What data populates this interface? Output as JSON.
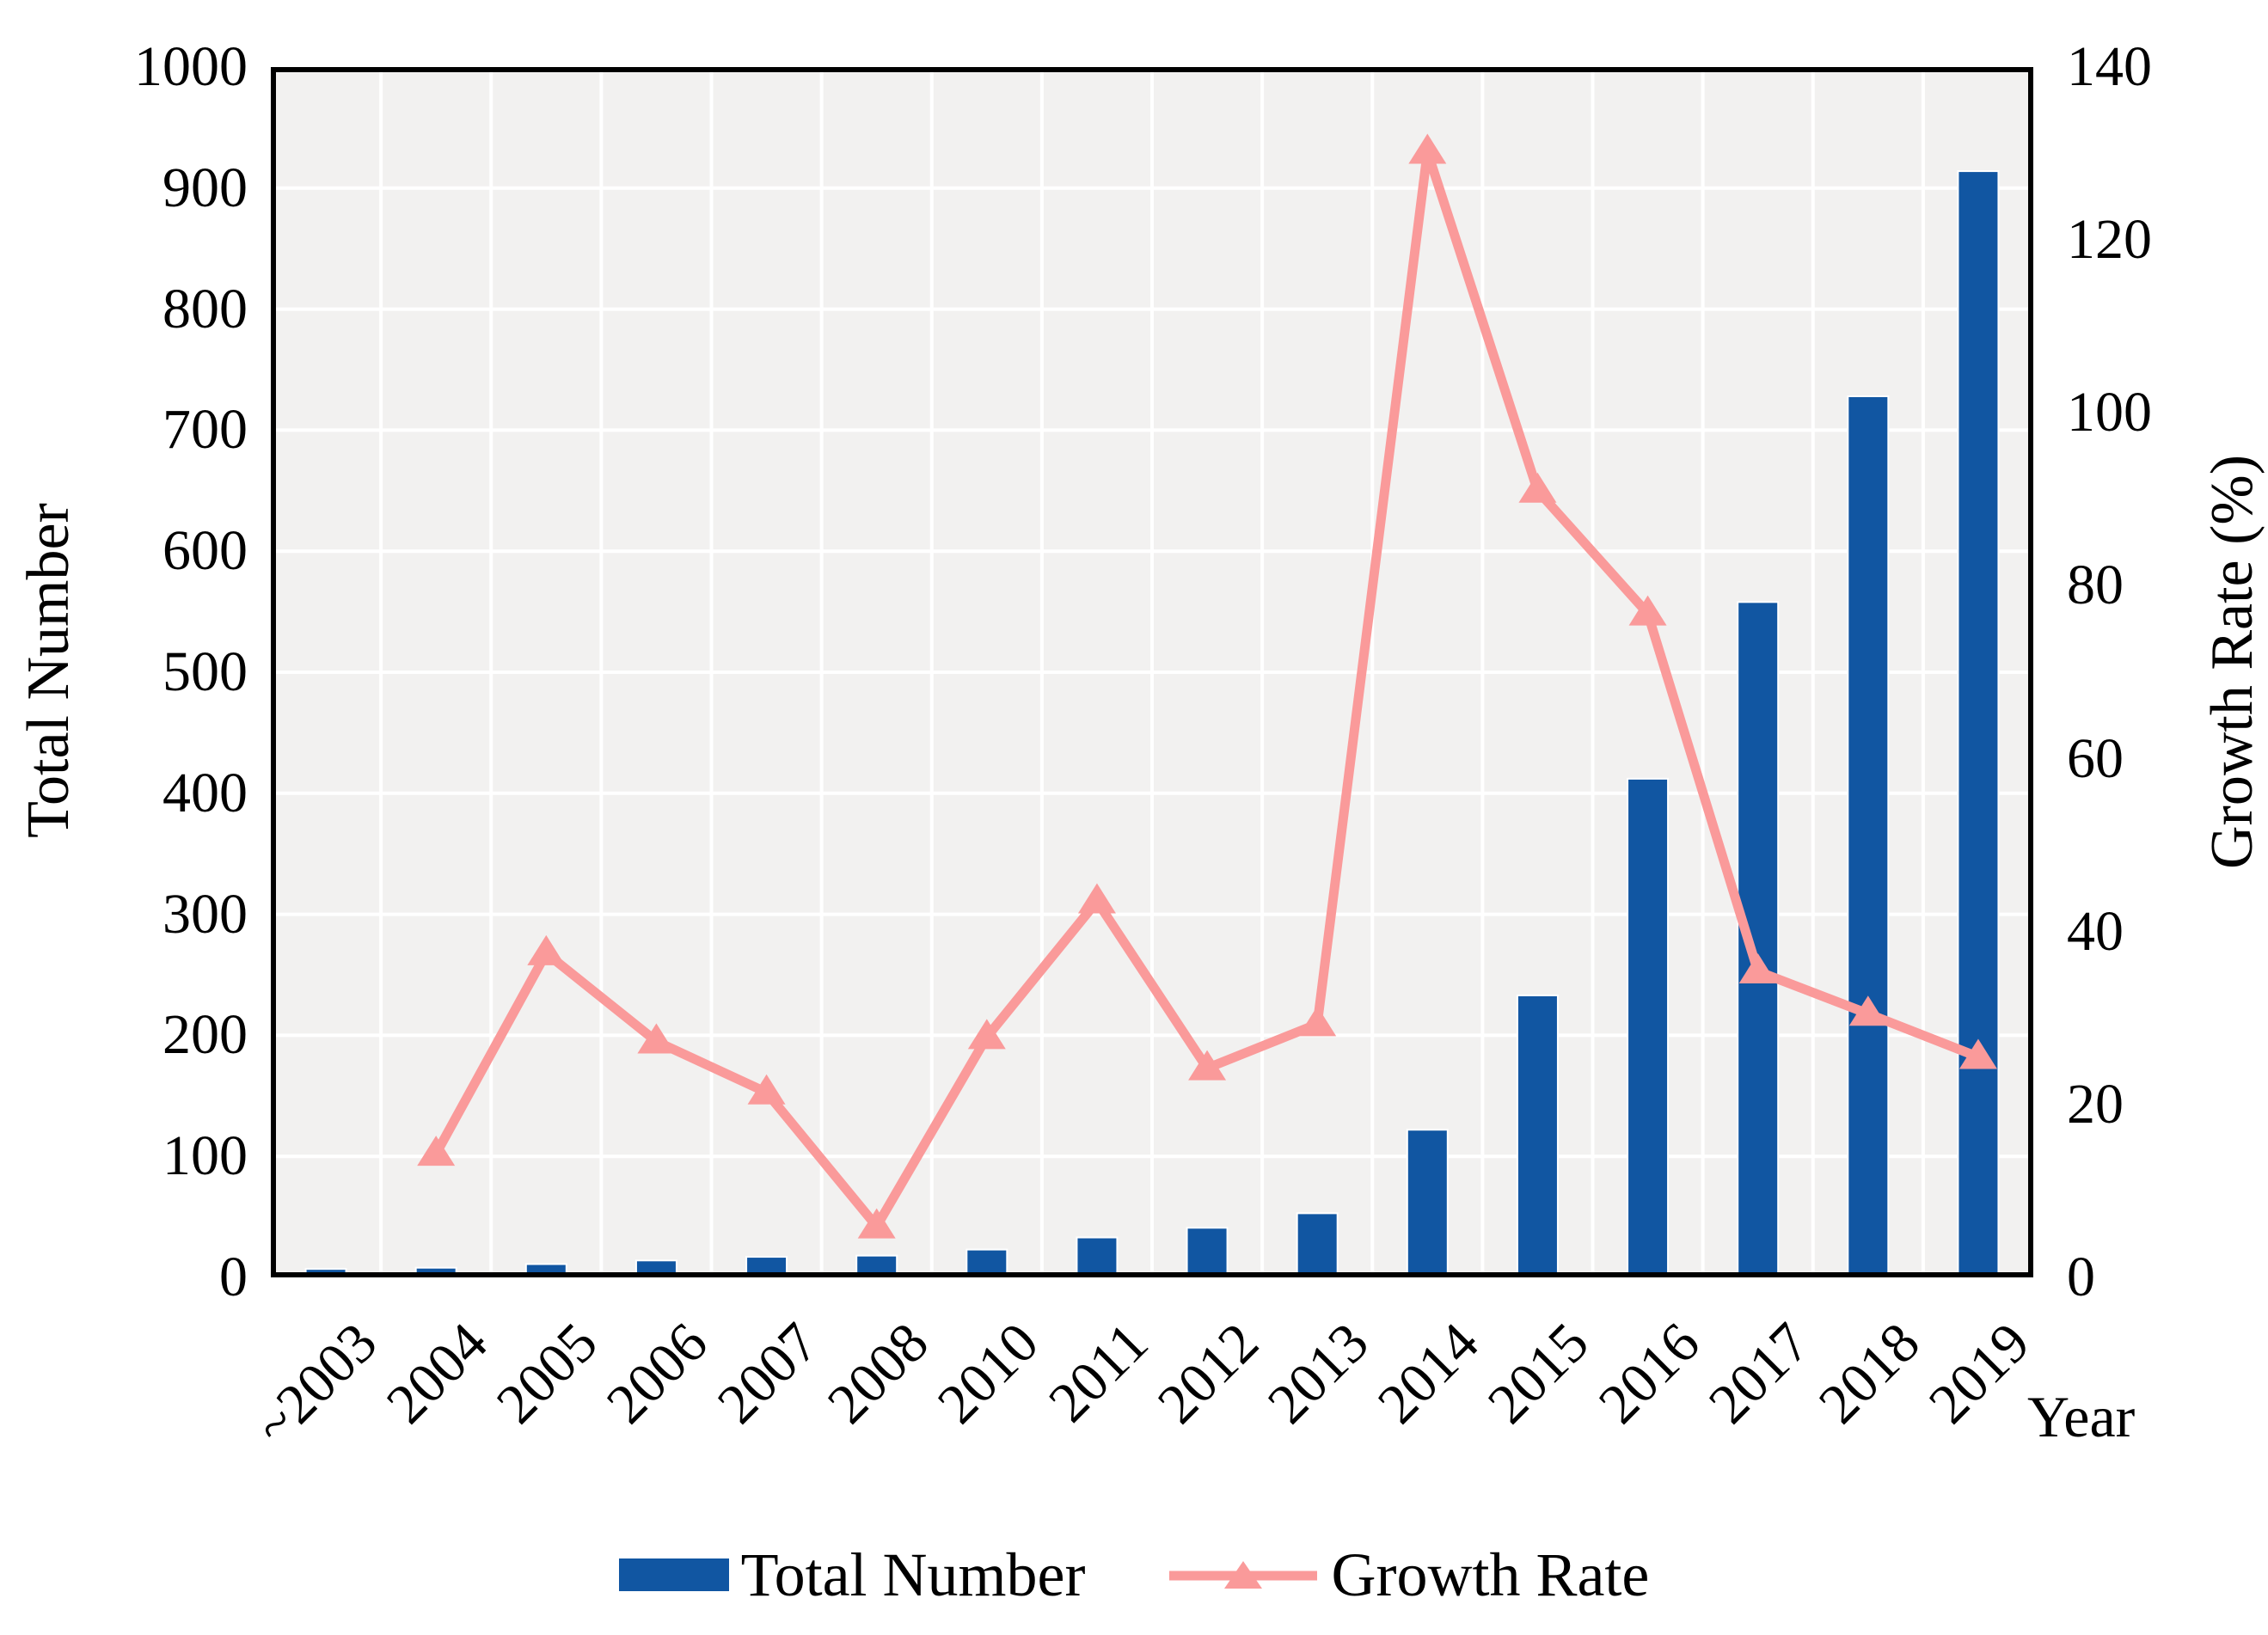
{
  "chart_data": {
    "type": "combo",
    "title": "",
    "categories": [
      "~2003",
      "2004",
      "2005",
      "2006",
      "2007",
      "2008",
      "2010",
      "2011",
      "2012",
      "2013",
      "2014",
      "2015",
      "2016",
      "2017",
      "2018",
      "2019"
    ],
    "series": [
      {
        "name": "Total Number",
        "type": "bar",
        "axis": "left",
        "color": "#1156A2",
        "values": [
          7,
          8,
          11,
          14,
          17,
          18,
          23,
          33,
          41,
          53,
          122,
          233,
          412,
          558,
          728,
          914
        ]
      },
      {
        "name": "Growth Rate",
        "type": "line",
        "axis": "right",
        "marker": "triangle-up",
        "color": "#FA9A9A",
        "values": [
          null,
          14.3,
          37.5,
          27.3,
          21.4,
          5.9,
          27.8,
          43.5,
          24.2,
          29.3,
          130.2,
          91.0,
          76.8,
          35.4,
          30.5,
          25.5
        ]
      }
    ],
    "xlabel": "Year",
    "ylabel_left": "Total Number",
    "ylabel_right": "Growth Rate (%)",
    "y_left_range": [
      0,
      1000
    ],
    "y_left_ticks": [
      1000,
      900,
      800,
      700,
      600,
      500,
      400,
      300,
      200,
      100,
      0
    ],
    "y_right_range": [
      0,
      140
    ],
    "y_right_ticks": [
      140,
      120,
      100,
      80,
      60,
      40,
      20,
      0
    ],
    "grid": true,
    "legend_position": "bottom",
    "colors": {
      "plot_bg": "#F2F1F0",
      "gridline": "#FFFFFF",
      "border": "#000000",
      "text": "#000000",
      "bar_outline": "#FFFFFF"
    }
  }
}
